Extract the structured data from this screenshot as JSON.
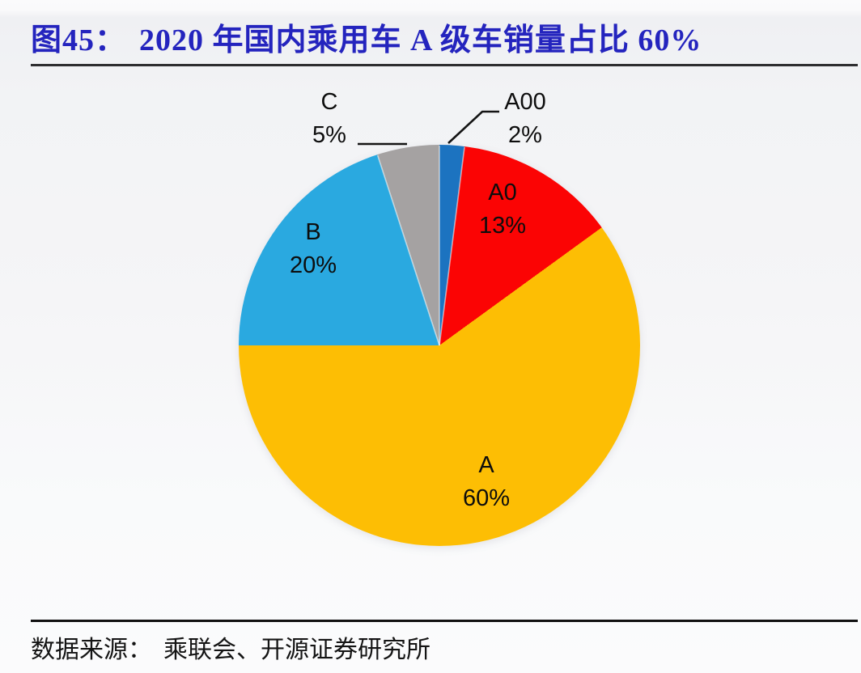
{
  "figure": {
    "tag": "图45：",
    "title": "2020 年国内乘用车 A 级车销量占比 60%"
  },
  "chart_data": {
    "type": "pie",
    "title": "2020 年国内乘用车 A 级车销量占比 60%",
    "start_angle_deg": 0,
    "direction": "clockwise",
    "legend": "none",
    "slices": [
      {
        "label": "A00",
        "value": 2,
        "pct_label": "2%",
        "color": "#1c73c0",
        "label_position": "outside-right"
      },
      {
        "label": "A0",
        "value": 13,
        "pct_label": "13%",
        "color": "#fb0404",
        "label_position": "inside"
      },
      {
        "label": "A",
        "value": 60,
        "pct_label": "60%",
        "color": "#fdbe04",
        "label_position": "inside"
      },
      {
        "label": "B",
        "value": 20,
        "pct_label": "20%",
        "color": "#2aa9e0",
        "label_position": "inside"
      },
      {
        "label": "C",
        "value": 5,
        "pct_label": "5%",
        "color": "#a5a2a2",
        "label_position": "outside-left"
      }
    ]
  },
  "source": {
    "label": "数据来源：",
    "text": "乘联会、开源证券研究所"
  },
  "colors": {
    "title_text": "#2424be",
    "label_text": "#0d0d0d",
    "rule": "#2e2e30",
    "leader_line": "#141414",
    "background": "#f2f3f5"
  }
}
